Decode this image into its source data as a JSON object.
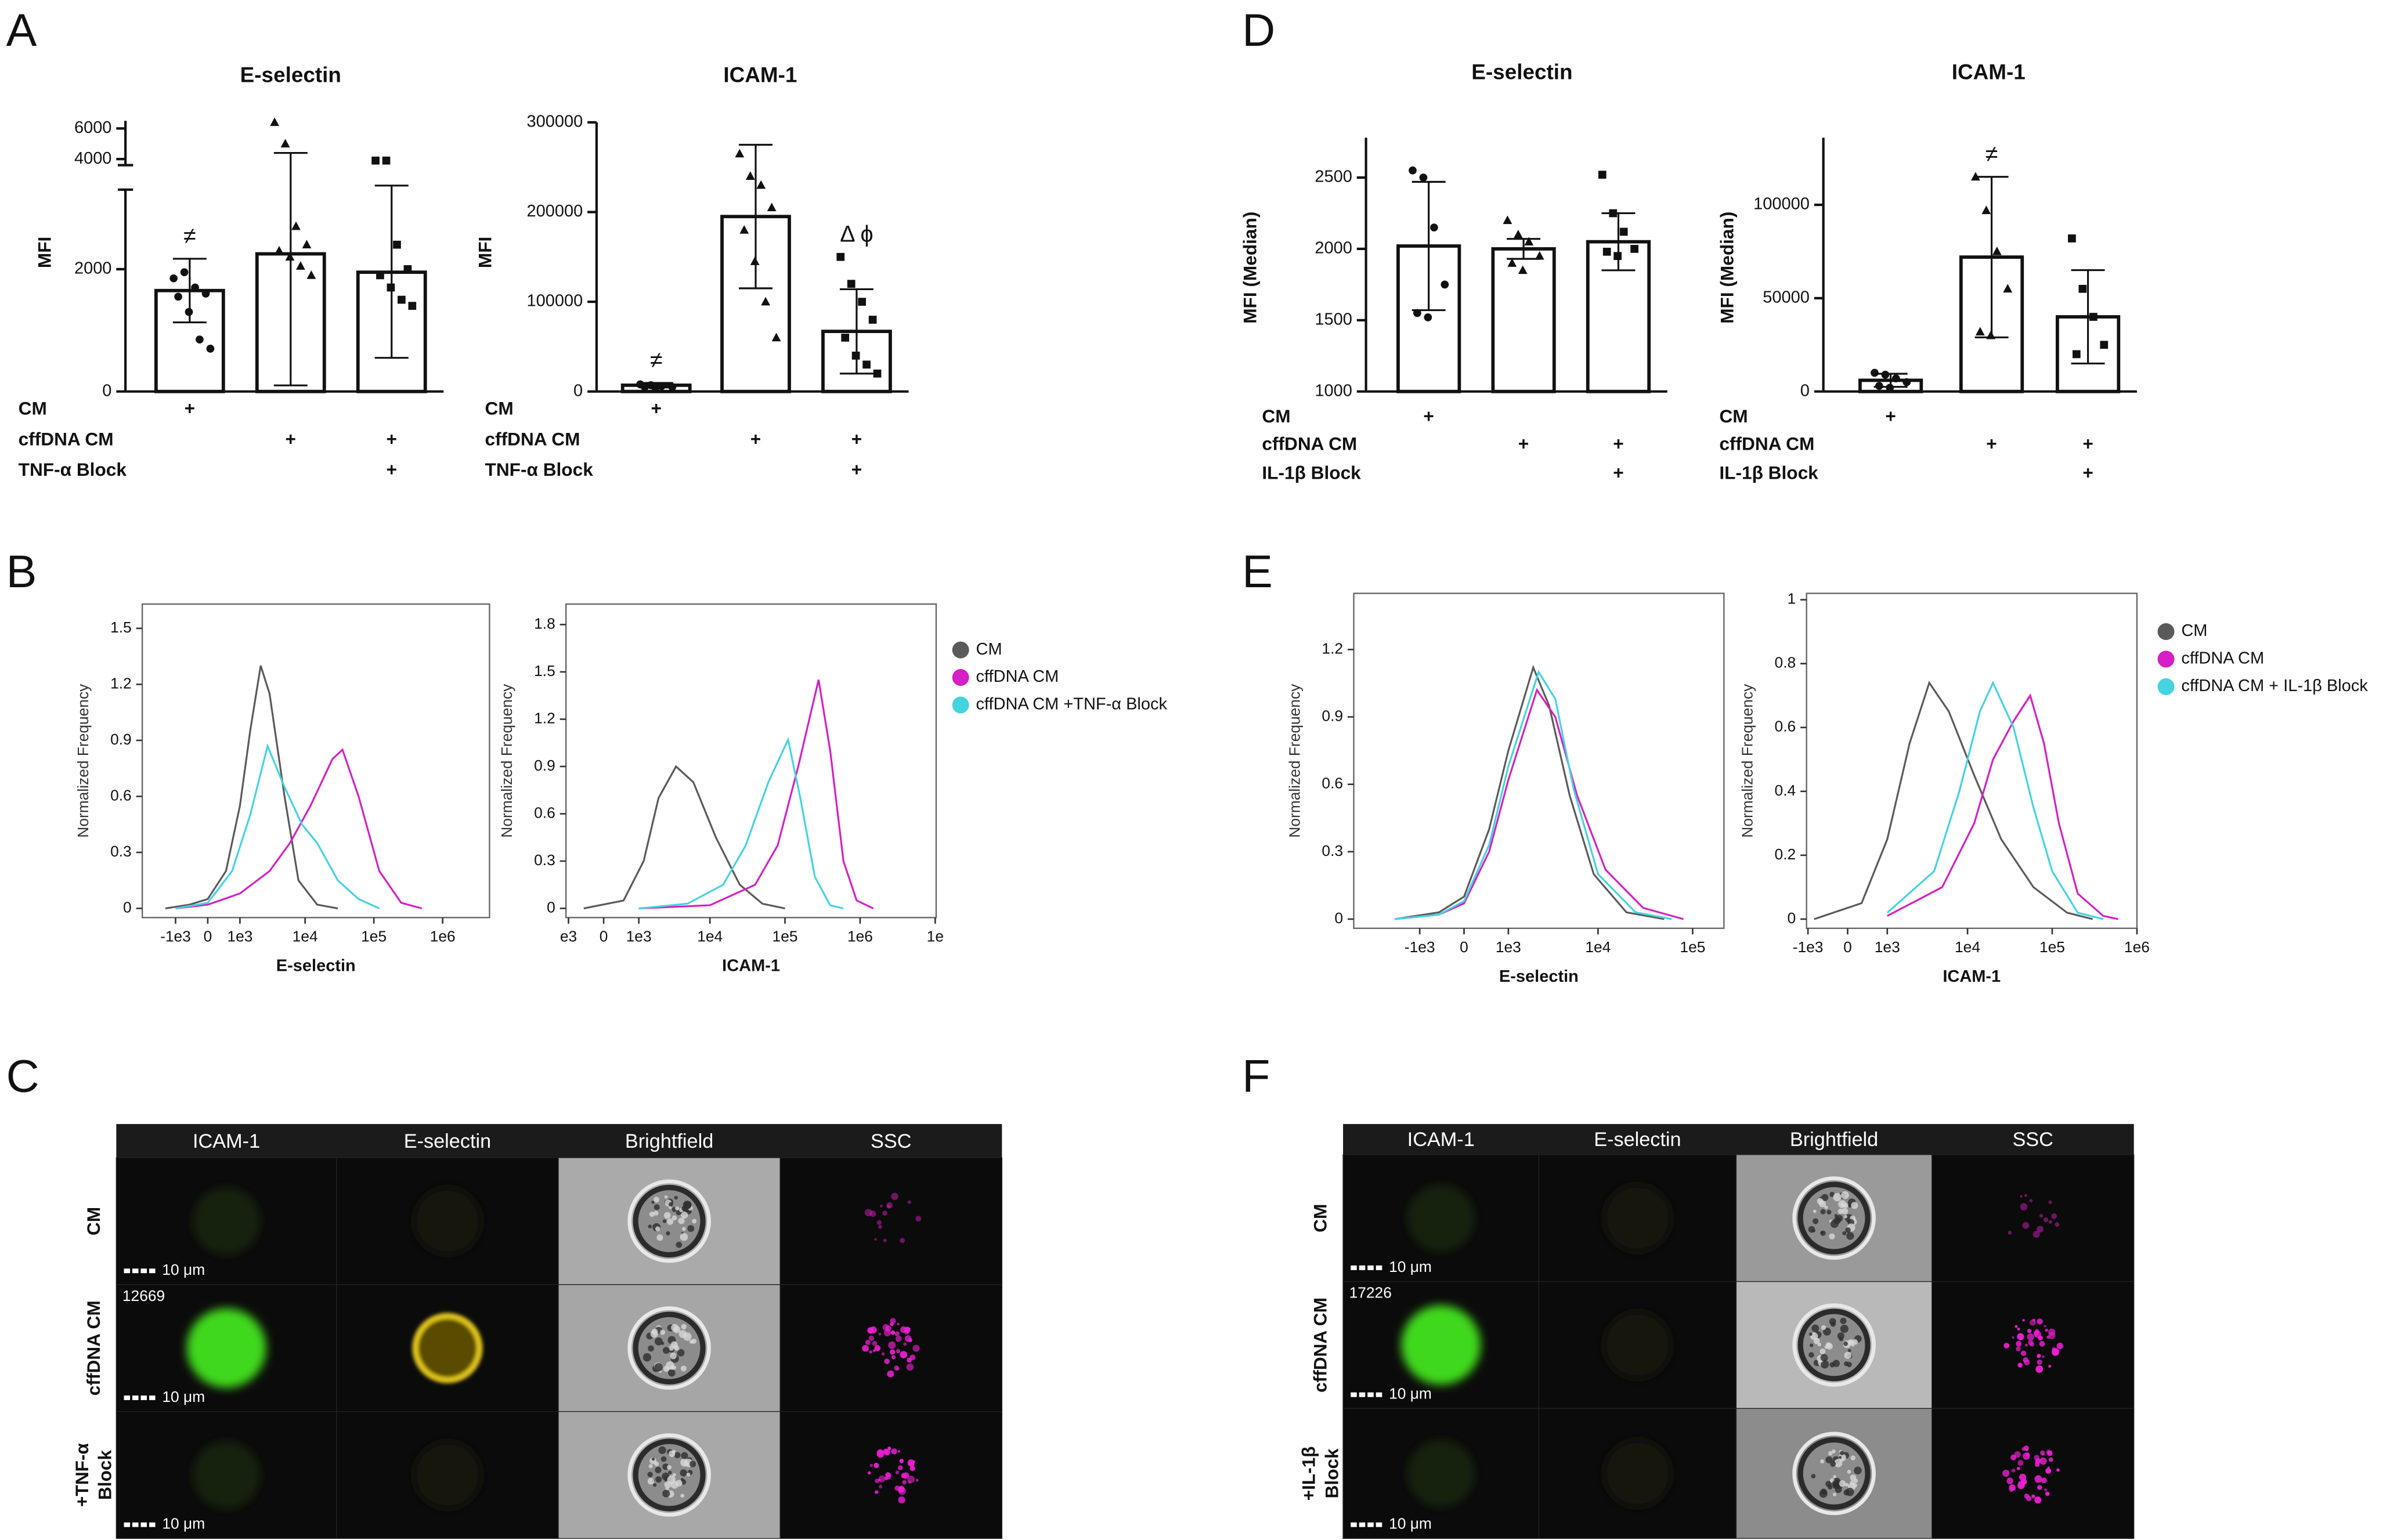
{
  "panel_labels": [
    "A",
    "B",
    "C",
    "D",
    "E",
    "F"
  ],
  "chart_data": [
    {
      "type": "bar",
      "title": "E-selectin",
      "ylabel": "MFI",
      "values": [
        1650,
        2250,
        1950
      ],
      "errors": [
        520,
        2150,
        1400
      ],
      "points": [
        [
          1850,
          1950,
          1700,
          1600,
          1550,
          1300,
          850,
          700
        ],
        [
          6400,
          5000,
          2700,
          2400,
          2300,
          2200,
          2050,
          1900
        ],
        [
          3900,
          3900,
          2400,
          2000,
          1900,
          1700,
          1500,
          1400
        ]
      ],
      "ylim": [
        0,
        6500
      ],
      "ybreak": [
        3300,
        3600
      ],
      "yticks": [
        0,
        2000,
        4000,
        6000
      ],
      "annotations": [
        "≠",
        null,
        null
      ],
      "conditions": [
        {
          "label": "CM",
          "marks": [
            "+",
            null,
            null
          ]
        },
        {
          "label": "cffDNA CM",
          "marks": [
            null,
            "+",
            "+"
          ]
        },
        {
          "label": "TNF-α Block",
          "marks": [
            null,
            null,
            "+"
          ]
        }
      ]
    },
    {
      "type": "bar",
      "title": "ICAM-1",
      "ylabel": "MFI",
      "values": [
        7000,
        195000,
        67000
      ],
      "errors": [
        2500,
        80000,
        47000
      ],
      "points": [
        [
          8000,
          7000,
          6000,
          5000,
          5000,
          4000
        ],
        [
          265000,
          240000,
          230000,
          205000,
          180000,
          145000,
          100000,
          60000
        ],
        [
          150000,
          120000,
          100000,
          80000,
          60000,
          40000,
          30000,
          20000
        ]
      ],
      "ylim": [
        0,
        300000
      ],
      "yticks": [
        0,
        100000,
        200000,
        300000
      ],
      "annotations": [
        "≠",
        null,
        "Δ ϕ"
      ],
      "conditions": [
        {
          "label": "CM",
          "marks": [
            "+",
            null,
            null
          ]
        },
        {
          "label": "cffDNA CM",
          "marks": [
            null,
            "+",
            "+"
          ]
        },
        {
          "label": "TNF-α Block",
          "marks": [
            null,
            null,
            "+"
          ]
        }
      ]
    },
    {
      "type": "bar",
      "title": "E-selectin",
      "ylabel": "MFI (Median)",
      "values": [
        2020,
        2000,
        2050
      ],
      "errors": [
        450,
        70,
        200
      ],
      "points": [
        [
          2550,
          2500,
          2150,
          1750,
          1550,
          1520
        ],
        [
          2200,
          2100,
          2050,
          1950,
          1900,
          1850
        ],
        [
          2520,
          2250,
          2120,
          2000,
          1980,
          1950
        ]
      ],
      "ylim": [
        1000,
        2780
      ],
      "yticks": [
        1000,
        1500,
        2000,
        2500
      ],
      "annotations": [
        null,
        null,
        null
      ],
      "conditions": [
        {
          "label": "CM",
          "marks": [
            "+",
            null,
            null
          ]
        },
        {
          "label": "cffDNA CM",
          "marks": [
            null,
            "+",
            "+"
          ]
        },
        {
          "label": "IL-1β Block",
          "marks": [
            null,
            null,
            "+"
          ]
        }
      ]
    },
    {
      "type": "bar",
      "title": "ICAM-1",
      "ylabel": "MFI (Median)",
      "values": [
        6000,
        72000,
        40000
      ],
      "errors": [
        3500,
        43000,
        25000
      ],
      "points": [
        [
          10000,
          9000,
          7000,
          5000,
          3000,
          2000
        ],
        [
          115000,
          97000,
          75000,
          55000,
          32000,
          30000
        ],
        [
          82000,
          55000,
          40000,
          25000,
          20000
        ]
      ],
      "ylim": [
        0,
        136000
      ],
      "yticks": [
        0,
        50000,
        100000
      ],
      "annotations": [
        null,
        "≠",
        null
      ],
      "conditions": [
        {
          "label": "CM",
          "marks": [
            "+",
            null,
            null
          ]
        },
        {
          "label": "cffDNA CM",
          "marks": [
            null,
            "+",
            "+"
          ]
        },
        {
          "label": "IL-1β Block",
          "marks": [
            null,
            null,
            "+"
          ]
        }
      ]
    },
    {
      "type": "histogram",
      "xlabel": "E-selectin",
      "ylabel": "Normalized Frequency",
      "xscale": "asinh",
      "xlim": [
        -3400,
        4800000
      ],
      "ylim": [
        0,
        1.63
      ],
      "yticks": [
        0,
        0.3,
        0.6,
        0.9,
        1.2,
        1.5
      ],
      "xticks": [
        {
          "value": -1000,
          "label": "-1e3"
        },
        0,
        {
          "value": 1000,
          "label": "1e3"
        },
        {
          "value": 10000,
          "label": "1e4"
        },
        {
          "value": 100000,
          "label": "1e5"
        },
        {
          "value": 1000000,
          "label": "1e6"
        }
      ],
      "series": [
        {
          "color": "#5a5a5a",
          "x": [
            -1500,
            -500,
            0,
            500,
            1000,
            1500,
            2200,
            3000,
            5000,
            8000,
            15000,
            30000
          ],
          "values": [
            0,
            0.02,
            0.05,
            0.2,
            0.55,
            0.95,
            1.3,
            1.15,
            0.6,
            0.15,
            0.02,
            0
          ]
        },
        {
          "color": "#d61fc4",
          "x": [
            -1000,
            0,
            1000,
            3000,
            6000,
            12000,
            25000,
            35000,
            60000,
            120000,
            250000,
            500000
          ],
          "values": [
            0,
            0.02,
            0.08,
            0.2,
            0.35,
            0.55,
            0.8,
            0.85,
            0.6,
            0.2,
            0.03,
            0
          ]
        },
        {
          "color": "#45d3e0",
          "x": [
            -1000,
            0,
            700,
            1500,
            2800,
            5000,
            9000,
            15000,
            30000,
            60000,
            120000
          ],
          "values": [
            0,
            0.03,
            0.2,
            0.5,
            0.87,
            0.65,
            0.45,
            0.35,
            0.15,
            0.05,
            0
          ]
        }
      ]
    },
    {
      "type": "histogram",
      "xlabel": "ICAM-1",
      "ylabel": "Normalized Frequency",
      "xscale": "asinh",
      "legend": "right",
      "xlim": [
        -1100,
        10300000
      ],
      "ylim": [
        0,
        1.93
      ],
      "yticks": [
        0,
        0.3,
        0.6,
        0.9,
        1.2,
        1.5,
        1.8
      ],
      "xticks": [
        {
          "value": -1000,
          "label": "e3"
        },
        0,
        {
          "value": 1000,
          "label": "1e3"
        },
        {
          "value": 10000,
          "label": "1e4"
        },
        {
          "value": 100000,
          "label": "1e5"
        },
        {
          "value": 1000000,
          "label": "1e6"
        },
        {
          "value": 10000000,
          "label": "1e"
        }
      ],
      "series": [
        {
          "name": "CM",
          "color": "#5a5a5a",
          "x": [
            -500,
            500,
            1200,
            2000,
            3500,
            6000,
            12000,
            25000,
            50000,
            100000
          ],
          "values": [
            0,
            0.05,
            0.3,
            0.7,
            0.9,
            0.8,
            0.45,
            0.15,
            0.03,
            0
          ]
        },
        {
          "name": "cffDNA CM",
          "color": "#d61fc4",
          "x": [
            1000,
            10000,
            40000,
            80000,
            150000,
            280000,
            400000,
            600000,
            900000,
            1500000
          ],
          "values": [
            0,
            0.02,
            0.15,
            0.4,
            0.9,
            1.45,
            1.0,
            0.3,
            0.05,
            0
          ]
        },
        {
          "name": "cffDNA CM +TNF-α Block",
          "color": "#45d3e0",
          "x": [
            1000,
            5000,
            15000,
            30000,
            60000,
            110000,
            160000,
            250000,
            400000,
            600000
          ],
          "values": [
            0,
            0.03,
            0.15,
            0.4,
            0.8,
            1.07,
            0.7,
            0.2,
            0.02,
            0
          ]
        }
      ]
    },
    {
      "type": "histogram",
      "xlabel": "E-selectin",
      "ylabel": "Normalized Frequency",
      "xscale": "asinh",
      "xlim": [
        -5600,
        214000
      ],
      "ylim": [
        0,
        1.45
      ],
      "yticks": [
        0,
        0.3,
        0.6,
        0.9,
        1.2
      ],
      "xticks": [
        {
          "value": -1000,
          "label": "-1e3"
        },
        0,
        {
          "value": 1000,
          "label": "1e3"
        },
        {
          "value": 10000,
          "label": "1e4"
        },
        {
          "value": 100000,
          "label": "1e5"
        }
      ],
      "series": [
        {
          "color": "#5a5a5a",
          "x": [
            -2000,
            -500,
            0,
            500,
            1000,
            2000,
            3000,
            5000,
            9000,
            20000,
            50000
          ],
          "values": [
            0,
            0.03,
            0.1,
            0.4,
            0.75,
            1.12,
            0.95,
            0.55,
            0.2,
            0.03,
            0
          ]
        },
        {
          "color": "#d61fc4",
          "x": [
            -2000,
            -500,
            0,
            500,
            1000,
            2200,
            3500,
            6000,
            12000,
            30000,
            80000
          ],
          "values": [
            0,
            0.02,
            0.07,
            0.3,
            0.62,
            1.02,
            0.9,
            0.55,
            0.22,
            0.05,
            0
          ]
        },
        {
          "color": "#45d3e0",
          "x": [
            -2000,
            -500,
            0,
            500,
            1000,
            2300,
            3500,
            5500,
            10000,
            25000,
            60000
          ],
          "values": [
            0,
            0.02,
            0.08,
            0.33,
            0.68,
            1.1,
            0.98,
            0.58,
            0.2,
            0.03,
            0
          ]
        }
      ]
    },
    {
      "type": "histogram",
      "xlabel": "ICAM-1",
      "ylabel": "Normalized Frequency",
      "xscale": "asinh",
      "legend": "right",
      "xlim": [
        -1050,
        1000000
      ],
      "ylim": [
        0,
        1.02
      ],
      "yticks": [
        0,
        0.2,
        0.4,
        0.6,
        0.8,
        1
      ],
      "xticks": [
        {
          "value": -1000,
          "label": "-1e3"
        },
        0,
        {
          "value": 1000,
          "label": "1e3"
        },
        {
          "value": 10000,
          "label": "1e4"
        },
        {
          "value": 100000,
          "label": "1e5"
        },
        {
          "value": 1000000,
          "label": "1e6"
        }
      ],
      "series": [
        {
          "name": "CM",
          "color": "#5a5a5a",
          "x": [
            -800,
            300,
            1000,
            2000,
            3500,
            6000,
            12000,
            25000,
            60000,
            150000,
            300000
          ],
          "values": [
            0,
            0.05,
            0.25,
            0.55,
            0.74,
            0.65,
            0.45,
            0.25,
            0.1,
            0.02,
            0
          ]
        },
        {
          "name": "cffDNA CM",
          "color": "#d61fc4",
          "x": [
            1000,
            5000,
            12000,
            20000,
            35000,
            55000,
            80000,
            120000,
            200000,
            400000,
            600000
          ],
          "values": [
            0.01,
            0.1,
            0.3,
            0.5,
            0.62,
            0.7,
            0.55,
            0.3,
            0.08,
            0.01,
            0
          ]
        },
        {
          "name": "cffDNA CM + IL-1β  Block",
          "color": "#45d3e0",
          "x": [
            1000,
            4000,
            8000,
            14000,
            20000,
            35000,
            60000,
            100000,
            200000,
            400000
          ],
          "values": [
            0.02,
            0.15,
            0.4,
            0.65,
            0.74,
            0.6,
            0.35,
            0.15,
            0.02,
            0
          ]
        }
      ]
    }
  ],
  "image_panels": [
    {
      "columns": [
        "ICAM-1",
        "E-selectin",
        "Brightfield",
        "SSC"
      ],
      "rows": [
        [
          "CM"
        ],
        [
          "cffDNA CM"
        ],
        [
          "+TNF-α",
          "Block"
        ]
      ],
      "scale_bar": "10 μm",
      "object_id": "12669"
    },
    {
      "columns": [
        "ICAM-1",
        "E-selectin",
        "Brightfield",
        "SSC"
      ],
      "rows": [
        [
          "CM"
        ],
        [
          "cffDNA CM"
        ],
        [
          "+IL-1β",
          "Block"
        ]
      ],
      "scale_bar": "10 μm",
      "object_id": "17226"
    }
  ]
}
